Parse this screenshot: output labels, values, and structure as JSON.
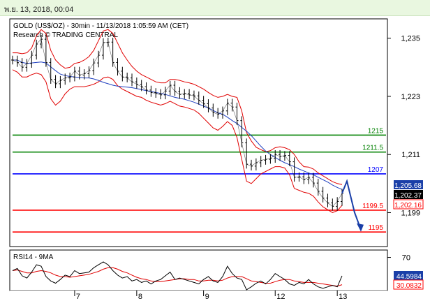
{
  "header": {
    "timestamp": "พ.ย. 13, 2018, 00:04"
  },
  "chart_data": [
    {
      "type": "line",
      "title": "GOLD (US$/OZ) - 30min - 11/13/2018 1:05:59 AM (CET)",
      "subtitle": "Research © TRADING CENTRAL",
      "ylim": [
        1192,
        1239
      ],
      "yticks": [
        1235,
        1223,
        1211,
        1199
      ],
      "ytick_labels": [
        "1,235",
        "1,223",
        "1,211",
        "1,199"
      ],
      "x_labels": [
        "7",
        "8",
        "9",
        "12",
        "13"
      ],
      "x_label_index": [
        13,
        26,
        40,
        55,
        68
      ],
      "price": [
        1230.5,
        1230.0,
        1229.0,
        1229.8,
        1231.5,
        1233.8,
        1234.8,
        1230.0,
        1226.5,
        1225.6,
        1226.3,
        1226.8,
        1227.0,
        1228.2,
        1227.4,
        1227.7,
        1228.3,
        1229.9,
        1231.5,
        1234.1,
        1234.2,
        1230.0,
        1228.2,
        1227.0,
        1226.8,
        1226.0,
        1225.5,
        1225.0,
        1224.3,
        1223.8,
        1223.6,
        1223.3,
        1224.1,
        1225.3,
        1224.0,
        1223.4,
        1223.6,
        1223.3,
        1223.1,
        1222.2,
        1221.5,
        1220.6,
        1219.7,
        1219.3,
        1220.0,
        1221.6,
        1220.8,
        1218.0,
        1213.4,
        1209.0,
        1208.6,
        1209.3,
        1209.8,
        1210.0,
        1210.2,
        1211.0,
        1210.6,
        1210.8,
        1209.5,
        1206.3,
        1206.4,
        1205.8,
        1206.3,
        1205.1,
        1203.4,
        1202.0,
        1201.0,
        1200.3,
        1201.3,
        1203.0
      ],
      "sma": [
        1230.5,
        1230.5,
        1230.0,
        1229.8,
        1229.9,
        1230.0,
        1230.1,
        1229.9,
        1229.1,
        1228.3,
        1227.6,
        1227.3,
        1227.1,
        1227.0,
        1226.9,
        1226.8,
        1226.8,
        1226.6,
        1226.3,
        1225.9,
        1225.6,
        1225.3,
        1225.1,
        1225.0,
        1224.9,
        1224.8,
        1224.6,
        1224.4,
        1224.2,
        1224.0,
        1223.8,
        1223.6,
        1223.4,
        1223.1,
        1222.8,
        1222.6,
        1222.4,
        1222.1,
        1221.8,
        1221.4,
        1221.0,
        1220.6,
        1220.1,
        1219.6,
        1219.3,
        1218.7,
        1218.0,
        1217.4,
        1216.6,
        1215.8,
        1214.9,
        1213.8,
        1212.7,
        1211.7,
        1211.0,
        1210.4,
        1209.8,
        1209.3,
        1208.9,
        1208.5,
        1208.0,
        1207.6,
        1207.2,
        1206.8,
        1206.3,
        1205.8,
        1205.3,
        1204.7,
        1204.2,
        1203.8
      ],
      "bb_upper": [
        1232.0,
        1232.0,
        1231.8,
        1232.0,
        1233.0,
        1235.5,
        1236.8,
        1236.0,
        1232.5,
        1230.5,
        1229.5,
        1228.8,
        1229.0,
        1229.8,
        1230.0,
        1230.5,
        1231.2,
        1232.5,
        1234.5,
        1236.5,
        1236.8,
        1236.0,
        1234.0,
        1232.0,
        1230.5,
        1229.2,
        1228.2,
        1227.5,
        1227.0,
        1226.5,
        1226.0,
        1225.8,
        1225.8,
        1226.5,
        1226.5,
        1226.3,
        1226.0,
        1225.8,
        1225.5,
        1225.0,
        1224.5,
        1223.8,
        1223.2,
        1222.8,
        1223.0,
        1223.4,
        1223.0,
        1222.8,
        1220.0,
        1215.5,
        1213.8,
        1212.5,
        1212.0,
        1211.6,
        1211.8,
        1212.4,
        1212.6,
        1212.4,
        1212.0,
        1211.0,
        1209.5,
        1208.5,
        1208.4,
        1208.0,
        1207.2,
        1206.6,
        1206.0,
        1205.4,
        1205.0,
        1204.8
      ],
      "bb_lower": [
        1228.5,
        1228.0,
        1227.0,
        1227.0,
        1227.5,
        1227.8,
        1227.5,
        1226.0,
        1222.5,
        1221.2,
        1222.0,
        1223.5,
        1224.5,
        1225.0,
        1225.0,
        1225.0,
        1225.2,
        1225.5,
        1226.0,
        1226.8,
        1227.0,
        1226.5,
        1225.2,
        1224.5,
        1224.0,
        1223.5,
        1223.0,
        1222.8,
        1222.2,
        1221.8,
        1221.5,
        1221.2,
        1221.5,
        1222.0,
        1221.5,
        1221.0,
        1220.8,
        1220.5,
        1220.2,
        1219.5,
        1218.5,
        1217.5,
        1216.5,
        1216.0,
        1216.8,
        1217.8,
        1217.0,
        1214.5,
        1210.0,
        1205.5,
        1205.0,
        1206.0,
        1207.0,
        1207.5,
        1208.0,
        1208.5,
        1208.5,
        1208.2,
        1206.8,
        1204.0,
        1203.6,
        1203.2,
        1203.0,
        1202.4,
        1201.2,
        1200.2,
        1199.6,
        1199.0,
        1199.4,
        1200.5
      ],
      "forecast": [
        1203.0,
        1205.5,
        1199.0,
        1195.5
      ],
      "levels": [
        {
          "value": 1215,
          "label": "1215",
          "color": "#008000"
        },
        {
          "value": 1211.5,
          "label": "1211.5",
          "color": "#008000"
        },
        {
          "value": 1207,
          "label": "1207",
          "color": "#0000ff"
        },
        {
          "value": 1199.5,
          "label": "1199.5",
          "color": "#ff0000"
        },
        {
          "value": 1195,
          "label": "1195",
          "color": "#ff0000"
        }
      ],
      "price_tags": [
        {
          "value": 1205.68,
          "label": "1,205.68",
          "bg": "#1a3fa8",
          "fg": "#ffffff"
        },
        {
          "value": 1202.37,
          "label": "1,202.37",
          "bg": "#000000",
          "fg": "#ffffff"
        },
        {
          "value": 1202.16,
          "label": "1,202.16",
          "bg": "#ffffff",
          "fg": "#ff0000"
        }
      ]
    },
    {
      "type": "line",
      "title": "RSI14 - 9MA",
      "ylim": [
        25,
        80
      ],
      "yticks": [
        70
      ],
      "ytick_labels": [
        "70"
      ],
      "rsi": [
        52,
        55,
        45,
        42,
        50,
        60,
        58,
        44,
        38,
        35,
        40,
        46,
        44,
        52,
        48,
        49,
        50,
        56,
        60,
        64,
        60,
        52,
        46,
        42,
        44,
        38,
        40,
        36,
        38,
        34,
        38,
        40,
        45,
        50,
        40,
        42,
        40,
        38,
        36,
        34,
        40,
        44,
        38,
        36,
        44,
        58,
        48,
        42,
        40,
        26,
        30,
        35,
        38,
        34,
        40,
        48,
        44,
        40,
        34,
        32,
        36,
        34,
        40,
        34,
        30,
        28,
        30,
        32,
        30,
        45
      ],
      "rsi_ma": [
        52,
        53,
        51,
        49,
        49,
        51,
        52,
        51,
        49,
        46,
        44,
        44,
        43,
        44,
        45,
        46,
        47,
        49,
        51,
        54,
        56,
        56,
        54,
        51,
        49,
        46,
        43,
        41,
        40,
        38,
        37,
        37,
        38,
        39,
        40,
        41,
        41,
        40,
        40,
        38,
        38,
        39,
        39,
        38,
        39,
        42,
        44,
        44,
        44,
        41,
        38,
        37,
        36,
        35,
        35,
        37,
        39,
        40,
        40,
        38,
        37,
        36,
        36,
        36,
        35,
        34,
        33,
        32,
        31,
        33
      ],
      "tags": [
        {
          "value": 44.5984,
          "label": "44.5984",
          "bg": "#1a3fa8",
          "fg": "#ffffff"
        },
        {
          "value": 30.0832,
          "label": "30.0832",
          "bg": "#ffffff",
          "fg": "#ff0000"
        }
      ]
    }
  ]
}
